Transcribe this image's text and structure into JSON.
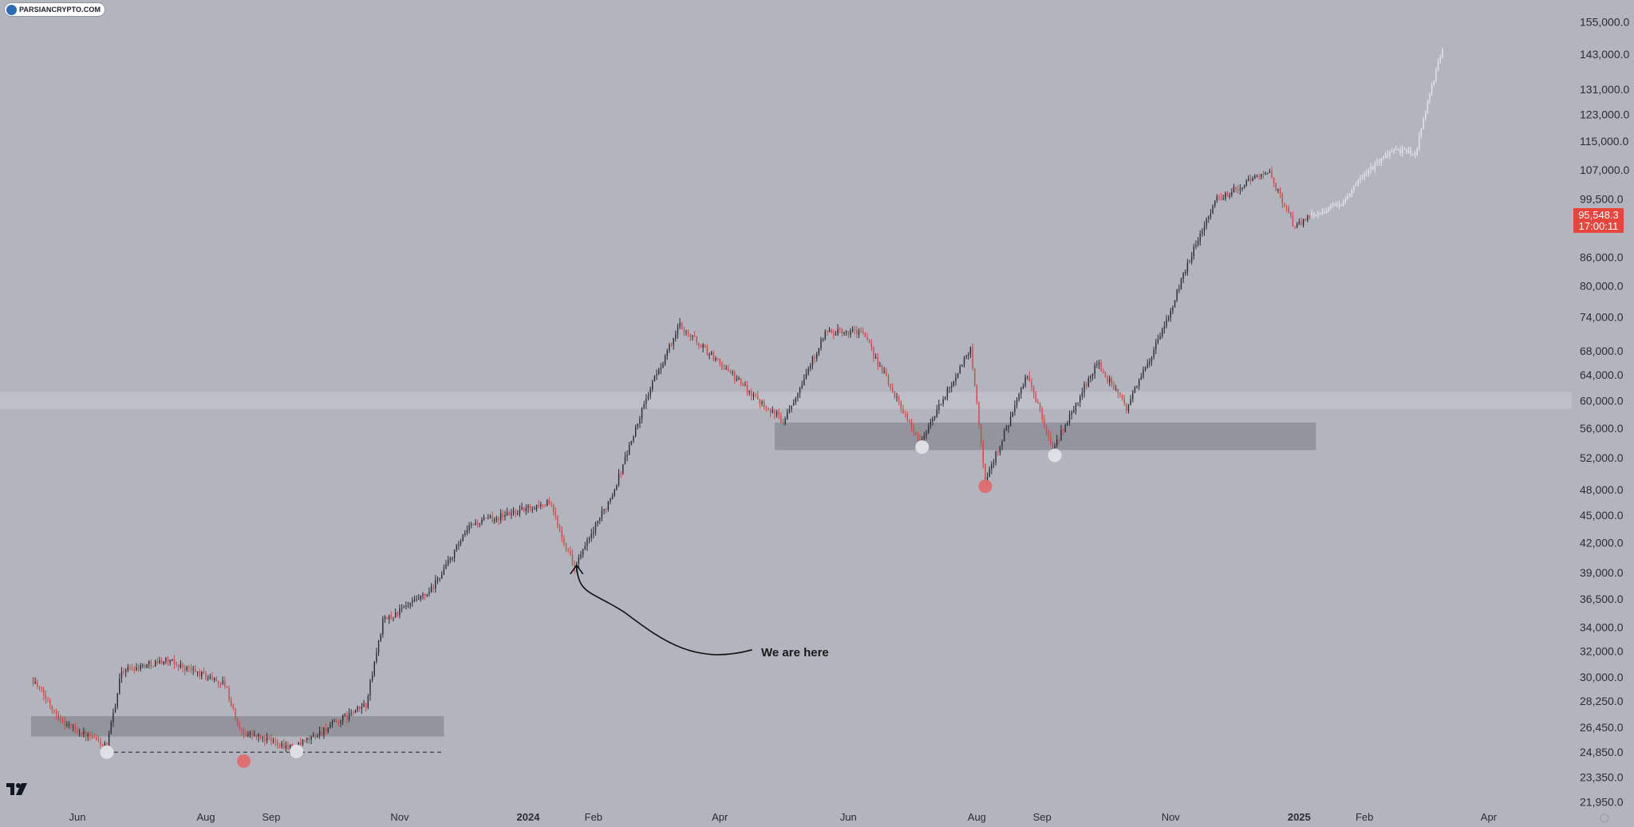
{
  "watermark": {
    "text": "PARSIANCRYPTO.COM",
    "icon": "parsiancrypto-logo-icon"
  },
  "current_price": {
    "price": "95,548.3",
    "countdown": "17:00:11",
    "color": "#e8453c"
  },
  "annotation": {
    "text": "We are here",
    "icon": "arrow-curved-icon"
  },
  "price_axis": {
    "labels": [
      "155,000.0",
      "143,000.0",
      "131,000.0",
      "123,000.0",
      "115,000.0",
      "107,000.0",
      "99,500.0",
      "86,000.0",
      "80,000.0",
      "74,000.0",
      "68,000.0",
      "64,000.0",
      "60,000.0",
      "56,000.0",
      "52,000.0",
      "48,000.0",
      "45,000.0",
      "42,000.0",
      "39,000.0",
      "36,500.0",
      "34,000.0",
      "32,000.0",
      "30,000.0",
      "28,250.0",
      "26,450.0",
      "24,850.0",
      "23,350.0",
      "21,950.0"
    ]
  },
  "time_axis": {
    "labels": [
      "Jun",
      "Aug",
      "Sep",
      "Nov",
      "2024",
      "Feb",
      "Apr",
      "Jun",
      "Aug",
      "Sep",
      "Nov",
      "2025",
      "Feb",
      "Apr"
    ],
    "bold": [
      false,
      false,
      false,
      false,
      true,
      false,
      false,
      false,
      false,
      false,
      false,
      true,
      false,
      false
    ]
  },
  "colors": {
    "background": "#b3b5be",
    "up_candle": "#2a2c33",
    "down_candle": "#d64545",
    "projection": "#e6e7eb",
    "support_zone": "#8f9198",
    "resistance_band": "#c2c4cb",
    "marker_white": "#e2e3e7",
    "marker_red": "#e06b6b"
  },
  "chart_data": {
    "type": "candlestick",
    "title": "",
    "scale": "log",
    "ylim": [
      21950,
      155000
    ],
    "xrange": [
      "2023-05-10",
      "2025-04-30"
    ],
    "price_path": [
      {
        "x": "2023-05-10",
        "y": 30000
      },
      {
        "x": "2023-05-25",
        "y": 26800
      },
      {
        "x": "2023-06-15",
        "y": 25200
      },
      {
        "x": "2023-06-22",
        "y": 30500
      },
      {
        "x": "2023-07-13",
        "y": 31300
      },
      {
        "x": "2023-08-10",
        "y": 29500
      },
      {
        "x": "2023-08-17",
        "y": 26200
      },
      {
        "x": "2023-09-12",
        "y": 25100
      },
      {
        "x": "2023-10-16",
        "y": 28000
      },
      {
        "x": "2023-10-24",
        "y": 34500
      },
      {
        "x": "2023-11-15",
        "y": 37000
      },
      {
        "x": "2023-12-05",
        "y": 44000
      },
      {
        "x": "2024-01-11",
        "y": 46500
      },
      {
        "x": "2024-01-23",
        "y": 39500
      },
      {
        "x": "2024-02-10",
        "y": 47500
      },
      {
        "x": "2024-02-28",
        "y": 62000
      },
      {
        "x": "2024-03-13",
        "y": 72500
      },
      {
        "x": "2024-04-13",
        "y": 62000
      },
      {
        "x": "2024-05-01",
        "y": 57000
      },
      {
        "x": "2024-05-21",
        "y": 71000
      },
      {
        "x": "2024-06-07",
        "y": 71500
      },
      {
        "x": "2024-07-05",
        "y": 54000
      },
      {
        "x": "2024-07-29",
        "y": 68500
      },
      {
        "x": "2024-08-05",
        "y": 49000
      },
      {
        "x": "2024-08-25",
        "y": 64000
      },
      {
        "x": "2024-09-06",
        "y": 53000
      },
      {
        "x": "2024-09-27",
        "y": 66000
      },
      {
        "x": "2024-10-11",
        "y": 59000
      },
      {
        "x": "2024-10-29",
        "y": 72000
      },
      {
        "x": "2024-11-12",
        "y": 88000
      },
      {
        "x": "2024-11-22",
        "y": 99000
      },
      {
        "x": "2024-12-17",
        "y": 107000
      },
      {
        "x": "2024-12-30",
        "y": 92500
      },
      {
        "x": "2025-01-06",
        "y": 95548
      }
    ],
    "projection_path": [
      {
        "x": "2025-01-06",
        "y": 95548
      },
      {
        "x": "2025-01-20",
        "y": 98000
      },
      {
        "x": "2025-02-05",
        "y": 108000
      },
      {
        "x": "2025-02-15",
        "y": 113000
      },
      {
        "x": "2025-02-25",
        "y": 111000
      },
      {
        "x": "2025-03-03",
        "y": 127000
      },
      {
        "x": "2025-03-10",
        "y": 145000
      }
    ],
    "zones": [
      {
        "name": "support-zone-2023",
        "x0": "2023-05-10",
        "x1": "2023-11-22",
        "y0": 25850,
        "y1": 27200
      },
      {
        "name": "support-zone-2024",
        "x0": "2024-04-27",
        "x1": "2025-01-09",
        "y0": 53000,
        "y1": 56800
      },
      {
        "name": "resistance-band",
        "x0": "2023-05-10",
        "x1": "2025-04-30",
        "y0": 58800,
        "y1": 61300
      }
    ],
    "dashed_line": {
      "x0": "2023-06-15",
      "x1": "2023-11-22",
      "y": 24850
    },
    "markers": [
      {
        "x": "2023-06-15",
        "y": 24850,
        "color": "white"
      },
      {
        "x": "2023-08-19",
        "y": 24300,
        "color": "red"
      },
      {
        "x": "2023-09-13",
        "y": 24900,
        "color": "white"
      },
      {
        "x": "2024-07-06",
        "y": 53400,
        "color": "white"
      },
      {
        "x": "2024-08-05",
        "y": 48400,
        "color": "red"
      },
      {
        "x": "2024-09-07",
        "y": 52300,
        "color": "white"
      }
    ],
    "annotation_point": {
      "x": "2024-01-24",
      "y": 39000
    }
  }
}
